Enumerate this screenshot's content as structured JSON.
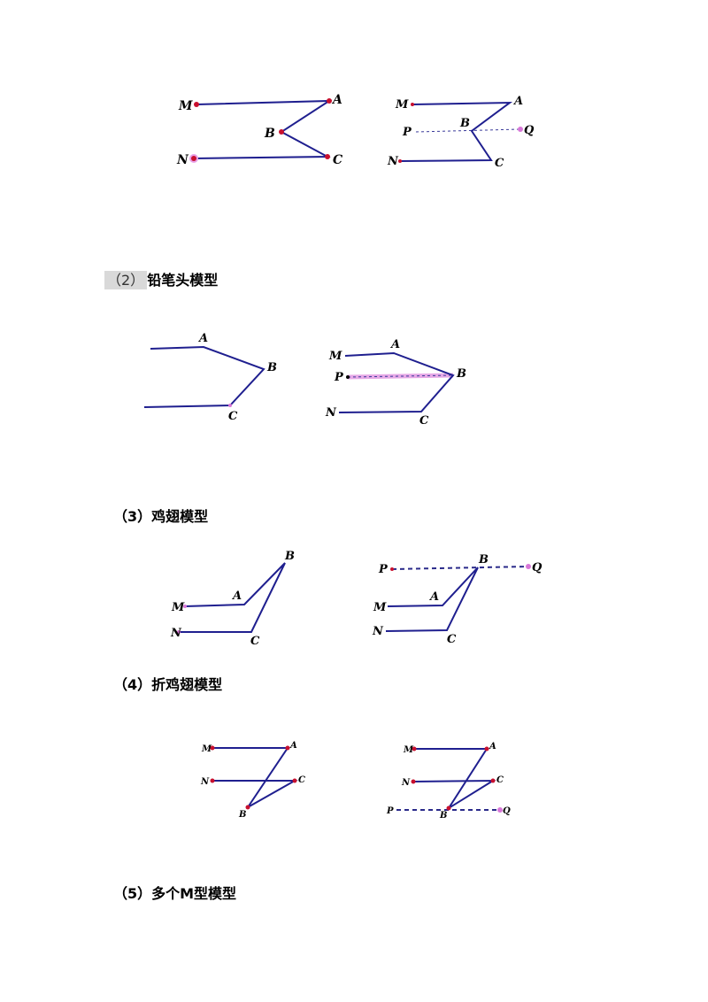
{
  "headings": {
    "h2_prefix": "（2）",
    "h2_title": "铅笔头模型",
    "h3": "（3）鸡翅模型",
    "h4": "（4）折鸡翅模型",
    "h5": "（5）多个M型模型"
  },
  "labels": {
    "M": "M",
    "N": "N",
    "A": "A",
    "B": "B",
    "C": "C",
    "P": "P",
    "Q": "Q"
  },
  "colors": {
    "line": "#1f1f8f",
    "point": "#c8102e",
    "aux": "#d877d8"
  }
}
